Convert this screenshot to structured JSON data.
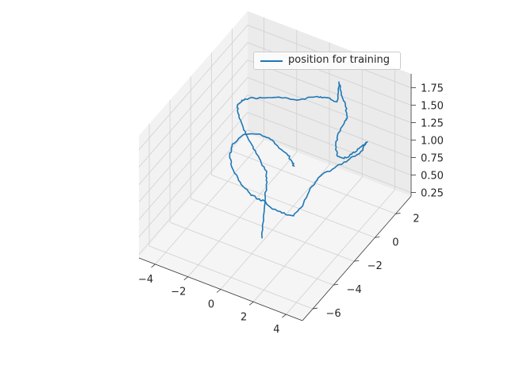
{
  "chart_data": {
    "type": "line",
    "projection": "3d",
    "title": "",
    "xlabel": "",
    "ylabel": "",
    "zlabel": "",
    "xlim": [
      -5,
      5
    ],
    "ylim": [
      -7,
      3.5
    ],
    "zlim": [
      0.2,
      1.95
    ],
    "x_ticks": [
      -4,
      -2,
      0,
      2,
      4
    ],
    "y_ticks": [
      -6,
      -4,
      -2,
      0,
      2
    ],
    "z_ticks": [
      0.25,
      0.5,
      0.75,
      1.0,
      1.25,
      1.5,
      1.75
    ],
    "x_tick_labels": [
      "−4",
      "−2",
      "0",
      "2",
      "4"
    ],
    "y_tick_labels": [
      "−6",
      "−4",
      "−2",
      "0",
      "2"
    ],
    "z_tick_labels": [
      "0.25",
      "0.50",
      "0.75",
      "1.00",
      "1.25",
      "1.50",
      "1.75"
    ],
    "grid": true,
    "legend_position": "top-right",
    "series": [
      {
        "name": "position for training",
        "color": "#1f77b4",
        "points": [
          [
            0.0,
            -3.0,
            0.25
          ],
          [
            0.0,
            -2.8,
            0.6
          ],
          [
            0.0,
            -2.6,
            0.95
          ],
          [
            -0.1,
            -2.4,
            1.1
          ],
          [
            -0.8,
            -2.0,
            1.15
          ],
          [
            -1.6,
            -1.5,
            1.2
          ],
          [
            -2.4,
            -1.0,
            1.25
          ],
          [
            -3.0,
            -0.5,
            1.3
          ],
          [
            -3.4,
            0.0,
            1.35
          ],
          [
            -3.2,
            0.4,
            1.38
          ],
          [
            -2.4,
            0.8,
            1.4
          ],
          [
            -1.4,
            1.2,
            1.42
          ],
          [
            -0.6,
            1.6,
            1.4
          ],
          [
            0.2,
            2.0,
            1.45
          ],
          [
            0.6,
            2.4,
            1.4
          ],
          [
            0.9,
            2.8,
            1.3
          ],
          [
            0.9,
            3.0,
            1.55
          ],
          [
            1.3,
            2.6,
            1.5
          ],
          [
            1.8,
            2.2,
            1.45
          ],
          [
            2.3,
            1.6,
            1.4
          ],
          [
            2.5,
            1.0,
            1.45
          ],
          [
            2.4,
            0.5,
            1.35
          ],
          [
            2.6,
            0.0,
            1.25
          ],
          [
            3.0,
            -0.4,
            1.25
          ],
          [
            3.5,
            -0.6,
            1.3
          ],
          [
            3.9,
            -0.5,
            1.38
          ],
          [
            4.2,
            -0.3,
            1.45
          ],
          [
            4.6,
            -0.1,
            1.55
          ],
          [
            4.4,
            -0.4,
            1.45
          ],
          [
            3.9,
            -0.8,
            1.35
          ],
          [
            3.3,
            -1.2,
            1.25
          ],
          [
            2.7,
            -1.6,
            1.15
          ],
          [
            2.3,
            -2.0,
            1.0
          ],
          [
            2.1,
            -2.4,
            0.8
          ],
          [
            1.8,
            -2.8,
            0.7
          ],
          [
            1.2,
            -3.0,
            0.72
          ],
          [
            0.6,
            -3.1,
            0.76
          ],
          [
            0.1,
            -3.0,
            0.8
          ],
          [
            -0.4,
            -2.8,
            0.74
          ],
          [
            -1.2,
            -2.4,
            0.7
          ],
          [
            -2.2,
            -1.8,
            0.68
          ],
          [
            -3.0,
            -1.2,
            0.7
          ],
          [
            -3.5,
            -0.6,
            0.72
          ],
          [
            -3.6,
            -0.2,
            0.8
          ],
          [
            -3.2,
            0.2,
            0.9
          ],
          [
            -2.4,
            0.4,
            0.95
          ],
          [
            -1.6,
            0.2,
            1.0
          ],
          [
            -0.8,
            -0.2,
            1.02
          ],
          [
            0.0,
            -0.6,
            1.05
          ],
          [
            0.6,
            -1.0,
            1.05
          ],
          [
            0.8,
            -1.2,
            1.05
          ]
        ]
      }
    ]
  }
}
